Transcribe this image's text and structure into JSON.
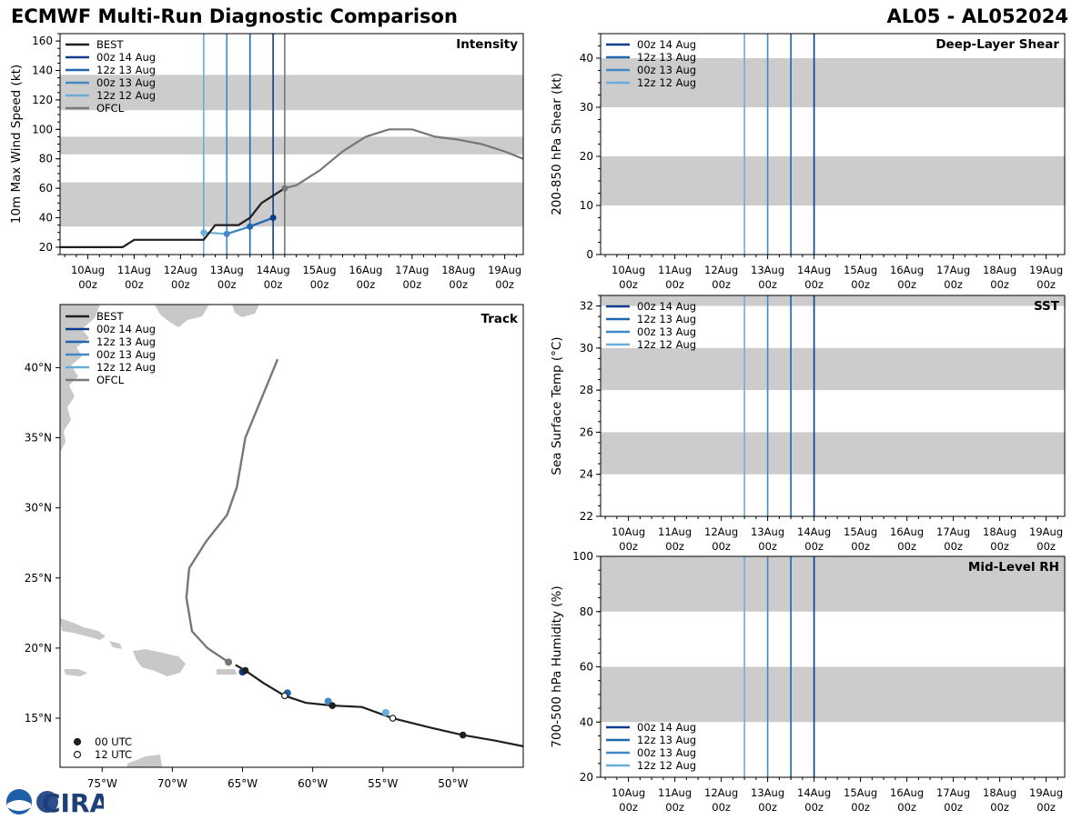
{
  "header": {
    "title_left": "ECMWF Multi-Run Diagnostic Comparison",
    "title_right": "AL05 - AL052024"
  },
  "colors": {
    "best": "#1f1f1f",
    "run_00z14": "#0c3c8c",
    "run_12z13": "#1f66ac",
    "run_00z13": "#4288c6",
    "run_12z12": "#6badd9",
    "ofcl": "#777777",
    "band": "#cccccc"
  },
  "time_axis": {
    "start_day": 9.4,
    "end_day": 19.4,
    "ticks": [
      {
        "day": 10,
        "l1": "10Aug",
        "l2": "00z"
      },
      {
        "day": 11,
        "l1": "11Aug",
        "l2": "00z"
      },
      {
        "day": 12,
        "l1": "12Aug",
        "l2": "00z"
      },
      {
        "day": 13,
        "l1": "13Aug",
        "l2": "00z"
      },
      {
        "day": 14,
        "l1": "14Aug",
        "l2": "00z"
      },
      {
        "day": 15,
        "l1": "15Aug",
        "l2": "00z"
      },
      {
        "day": 16,
        "l1": "16Aug",
        "l2": "00z"
      },
      {
        "day": 17,
        "l1": "17Aug",
        "l2": "00z"
      },
      {
        "day": 18,
        "l1": "18Aug",
        "l2": "00z"
      },
      {
        "day": 19,
        "l1": "19Aug",
        "l2": "00z"
      }
    ]
  },
  "chart_data": [
    {
      "type": "line",
      "name": "intensity",
      "title": "Intensity",
      "ylabel": "10m Max Wind Speed (kt)",
      "ylim": [
        15,
        165
      ],
      "yticks": [
        20,
        40,
        60,
        80,
        100,
        120,
        140,
        160
      ],
      "bands": [
        [
          34,
          64
        ],
        [
          83,
          95
        ],
        [
          113,
          137
        ]
      ],
      "run_lines": [
        {
          "day": 12.5,
          "color_key": "run_12z12"
        },
        {
          "day": 13.0,
          "color_key": "run_00z13"
        },
        {
          "day": 13.5,
          "color_key": "run_12z13"
        },
        {
          "day": 14.0,
          "color_key": "run_00z14"
        },
        {
          "day": 14.25,
          "color_key": "ofcl"
        }
      ],
      "legend": [
        {
          "label": "BEST",
          "color_key": "best"
        },
        {
          "label": "00z 14 Aug",
          "color_key": "run_00z14"
        },
        {
          "label": "12z 13 Aug",
          "color_key": "run_12z13"
        },
        {
          "label": "00z 13 Aug",
          "color_key": "run_00z13"
        },
        {
          "label": "12z 12 Aug",
          "color_key": "run_12z12"
        },
        {
          "label": "OFCL",
          "color_key": "ofcl"
        }
      ],
      "series": [
        {
          "name": "BEST",
          "color_key": "best",
          "x": [
            9.4,
            10.75,
            11.0,
            12.5,
            12.75,
            13.25,
            13.5,
            13.75,
            14.0,
            14.25
          ],
          "y": [
            20,
            20,
            25,
            25,
            35,
            35,
            40,
            50,
            55,
            60
          ]
        },
        {
          "name": "OFCL",
          "color_key": "ofcl",
          "x": [
            14.25,
            14.5,
            15.0,
            15.5,
            16.0,
            16.5,
            17.0,
            17.5,
            18.0,
            18.5,
            19.0,
            19.4
          ],
          "y": [
            60,
            62,
            72,
            85,
            95,
            100,
            100,
            95,
            93,
            90,
            85,
            80
          ]
        },
        {
          "name": "00z 14 Aug",
          "color_key": "run_00z14",
          "x": [
            14.0
          ],
          "y": [
            40
          ]
        },
        {
          "name": "12z 13 Aug",
          "color_key": "run_12z13",
          "x": [
            13.5,
            14.0
          ],
          "y": [
            34,
            40
          ]
        },
        {
          "name": "00z 13 Aug",
          "color_key": "run_00z13",
          "x": [
            13.0,
            13.5,
            14.0
          ],
          "y": [
            29,
            34,
            40
          ]
        },
        {
          "name": "12z 12 Aug",
          "color_key": "run_12z12",
          "x": [
            12.5,
            13.0,
            13.5,
            14.0
          ],
          "y": [
            30,
            29,
            34,
            40
          ]
        }
      ],
      "markers": [
        {
          "x": 12.5,
          "y": 30,
          "color_key": "run_12z12"
        },
        {
          "x": 13.0,
          "y": 29,
          "color_key": "run_00z13"
        },
        {
          "x": 13.5,
          "y": 34,
          "color_key": "run_12z13"
        },
        {
          "x": 14.0,
          "y": 40,
          "color_key": "run_00z14"
        },
        {
          "x": 14.25,
          "y": 60,
          "color_key": "ofcl"
        }
      ]
    },
    {
      "type": "line",
      "name": "shear",
      "title": "Deep-Layer Shear",
      "ylabel": "200-850 hPa Shear (kt)",
      "ylim": [
        0,
        45
      ],
      "yticks": [
        0,
        10,
        20,
        30,
        40
      ],
      "bands": [
        [
          10,
          20
        ],
        [
          30,
          40
        ]
      ],
      "run_lines": [
        {
          "day": 12.5,
          "color_key": "run_12z12"
        },
        {
          "day": 13.0,
          "color_key": "run_00z13"
        },
        {
          "day": 13.5,
          "color_key": "run_12z13"
        },
        {
          "day": 14.0,
          "color_key": "run_00z14"
        }
      ],
      "legend": [
        {
          "label": "00z 14 Aug",
          "color_key": "run_00z14"
        },
        {
          "label": "12z 13 Aug",
          "color_key": "run_12z13"
        },
        {
          "label": "00z 13 Aug",
          "color_key": "run_00z13"
        },
        {
          "label": "12z 12 Aug",
          "color_key": "run_12z12"
        }
      ],
      "series": []
    },
    {
      "type": "line",
      "name": "sst",
      "title": "SST",
      "ylabel": "Sea Surface Temp (°C)",
      "ylim": [
        22,
        32.5
      ],
      "yticks": [
        22,
        24,
        26,
        28,
        30,
        32
      ],
      "bands": [
        [
          24,
          26
        ],
        [
          28,
          30
        ],
        [
          32,
          32.5
        ]
      ],
      "run_lines": [
        {
          "day": 12.5,
          "color_key": "run_12z12"
        },
        {
          "day": 13.0,
          "color_key": "run_00z13"
        },
        {
          "day": 13.5,
          "color_key": "run_12z13"
        },
        {
          "day": 14.0,
          "color_key": "run_00z14"
        }
      ],
      "legend": [
        {
          "label": "00z 14 Aug",
          "color_key": "run_00z14"
        },
        {
          "label": "12z 13 Aug",
          "color_key": "run_12z13"
        },
        {
          "label": "00z 13 Aug",
          "color_key": "run_00z13"
        },
        {
          "label": "12z 12 Aug",
          "color_key": "run_12z12"
        }
      ],
      "series": []
    },
    {
      "type": "line",
      "name": "rh",
      "title": "Mid-Level RH",
      "ylabel": "700-500 hPa Humidity (%)",
      "ylim": [
        20,
        100
      ],
      "yticks": [
        20,
        40,
        60,
        80,
        100
      ],
      "bands": [
        [
          40,
          60
        ],
        [
          80,
          100
        ]
      ],
      "run_lines": [
        {
          "day": 12.5,
          "color_key": "run_12z12"
        },
        {
          "day": 13.0,
          "color_key": "run_00z13"
        },
        {
          "day": 13.5,
          "color_key": "run_12z13"
        },
        {
          "day": 14.0,
          "color_key": "run_00z14"
        }
      ],
      "legend": [
        {
          "label": "00z 14 Aug",
          "color_key": "run_00z14"
        },
        {
          "label": "12z 13 Aug",
          "color_key": "run_12z13"
        },
        {
          "label": "00z 13 Aug",
          "color_key": "run_00z13"
        },
        {
          "label": "12z 12 Aug",
          "color_key": "run_12z12"
        }
      ],
      "series": []
    },
    {
      "type": "scatter",
      "name": "track",
      "title": "Track",
      "xlim": [
        -78,
        -45
      ],
      "ylim": [
        11.5,
        44.5
      ],
      "xticks": [
        {
          "v": -75,
          "label": "75°W"
        },
        {
          "v": -70,
          "label": "70°W"
        },
        {
          "v": -65,
          "label": "65°W"
        },
        {
          "v": -60,
          "label": "60°W"
        },
        {
          "v": -55,
          "label": "55°W"
        },
        {
          "v": -50,
          "label": "50°W"
        }
      ],
      "yticks": [
        {
          "v": 15,
          "label": "15°N"
        },
        {
          "v": 20,
          "label": "20°N"
        },
        {
          "v": 25,
          "label": "25°N"
        },
        {
          "v": 30,
          "label": "30°N"
        },
        {
          "v": 35,
          "label": "35°N"
        },
        {
          "v": 40,
          "label": "40°N"
        }
      ],
      "legend": [
        {
          "label": "BEST",
          "color_key": "best"
        },
        {
          "label": "00z 14 Aug",
          "color_key": "run_00z14"
        },
        {
          "label": "12z 13 Aug",
          "color_key": "run_12z13"
        },
        {
          "label": "00z 13 Aug",
          "color_key": "run_00z13"
        },
        {
          "label": "12z 12 Aug",
          "color_key": "run_12z12"
        },
        {
          "label": "OFCL",
          "color_key": "ofcl"
        }
      ],
      "marker_legend": [
        {
          "label": "00 UTC",
          "filled": true
        },
        {
          "label": "12 UTC",
          "filled": false
        }
      ],
      "best_track": {
        "lon": [
          -45,
          -47,
          -49.3,
          -51.5,
          -54.3,
          -56.5,
          -58.6,
          -60.5,
          -62,
          -63.5,
          -64.8,
          -65.5
        ],
        "lat": [
          13,
          13.4,
          13.8,
          14.3,
          15,
          15.8,
          15.9,
          16.1,
          16.6,
          17.5,
          18.4,
          18.8
        ]
      },
      "ofcl_track": {
        "lon": [
          -66,
          -67.5,
          -68.6,
          -69,
          -68.8,
          -67.6,
          -66.1,
          -65.4,
          -64.8,
          -62.5
        ],
        "lat": [
          19,
          20,
          21.2,
          23.6,
          25.7,
          27.6,
          29.5,
          31.5,
          35,
          40.6
        ]
      },
      "best_points": [
        {
          "lon": -49.3,
          "lat": 13.8,
          "filled": true
        },
        {
          "lon": -54.3,
          "lat": 15,
          "filled": false
        },
        {
          "lon": -58.6,
          "lat": 15.9,
          "filled": true
        },
        {
          "lon": -62,
          "lat": 16.6,
          "filled": false
        },
        {
          "lon": -64.8,
          "lat": 18.4,
          "filled": true
        }
      ],
      "run_points": [
        {
          "lon": -54.8,
          "lat": 15.4,
          "color_key": "run_12z12"
        },
        {
          "lon": -58.9,
          "lat": 16.2,
          "color_key": "run_00z13"
        },
        {
          "lon": -61.8,
          "lat": 16.8,
          "color_key": "run_12z13"
        },
        {
          "lon": -65,
          "lat": 18.3,
          "color_key": "run_00z14"
        },
        {
          "lon": -66,
          "lat": 19,
          "color_key": "ofcl"
        }
      ]
    }
  ],
  "logo": {
    "text": "CIRA"
  }
}
